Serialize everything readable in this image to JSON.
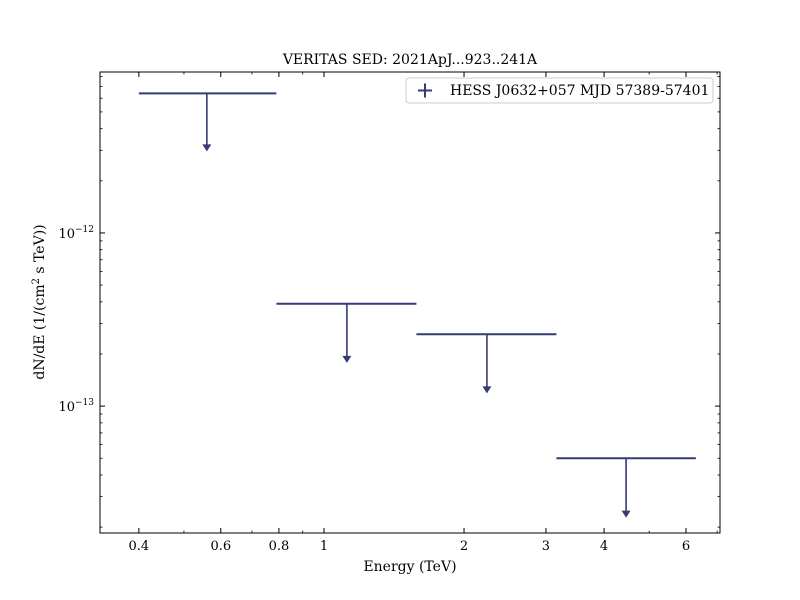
{
  "chart_data": {
    "type": "scatter",
    "title": "VERITAS SED: 2021ApJ...923..241A",
    "xlabel": "Energy (TeV)",
    "ylabel_main": "dN/dE (1/(cm",
    "ylabel_sup": "2",
    "ylabel_tail": " s TeV))",
    "xscale": "log",
    "yscale": "log",
    "xlim": [
      0.33,
      7.1
    ],
    "ylim": [
      1.85e-14,
      8.5e-12
    ],
    "xticks": [
      {
        "value": 0.4,
        "label": "0.4"
      },
      {
        "value": 0.6,
        "label": "0.6"
      },
      {
        "value": 0.8,
        "label": "0.8"
      },
      {
        "value": 1,
        "label": "1"
      },
      {
        "value": 2,
        "label": "2"
      },
      {
        "value": 3,
        "label": "3"
      },
      {
        "value": 4,
        "label": "4"
      },
      {
        "value": 6,
        "label": "6"
      }
    ],
    "yticks": [
      {
        "value": 1e-12,
        "base": "10",
        "exp": "−12"
      },
      {
        "value": 1e-13,
        "base": "10",
        "exp": "−13"
      }
    ],
    "legend_position": "top-right",
    "series": [
      {
        "name": "HESS J0632+057 MJD 57389-57401",
        "color": "#353b73",
        "upper_limits": true,
        "points": [
          {
            "x": 0.56,
            "xmin": 0.4,
            "xmax": 0.79,
            "y": 6.4e-12,
            "y_arrow_end": 3e-12
          },
          {
            "x": 1.12,
            "xmin": 0.79,
            "xmax": 1.58,
            "y": 3.9e-13,
            "y_arrow_end": 1.8e-13
          },
          {
            "x": 2.24,
            "xmin": 1.58,
            "xmax": 3.16,
            "y": 2.6e-13,
            "y_arrow_end": 1.2e-13
          },
          {
            "x": 4.46,
            "xmin": 3.16,
            "xmax": 6.3,
            "y": 5e-14,
            "y_arrow_end": 2.3e-14
          }
        ]
      }
    ]
  }
}
